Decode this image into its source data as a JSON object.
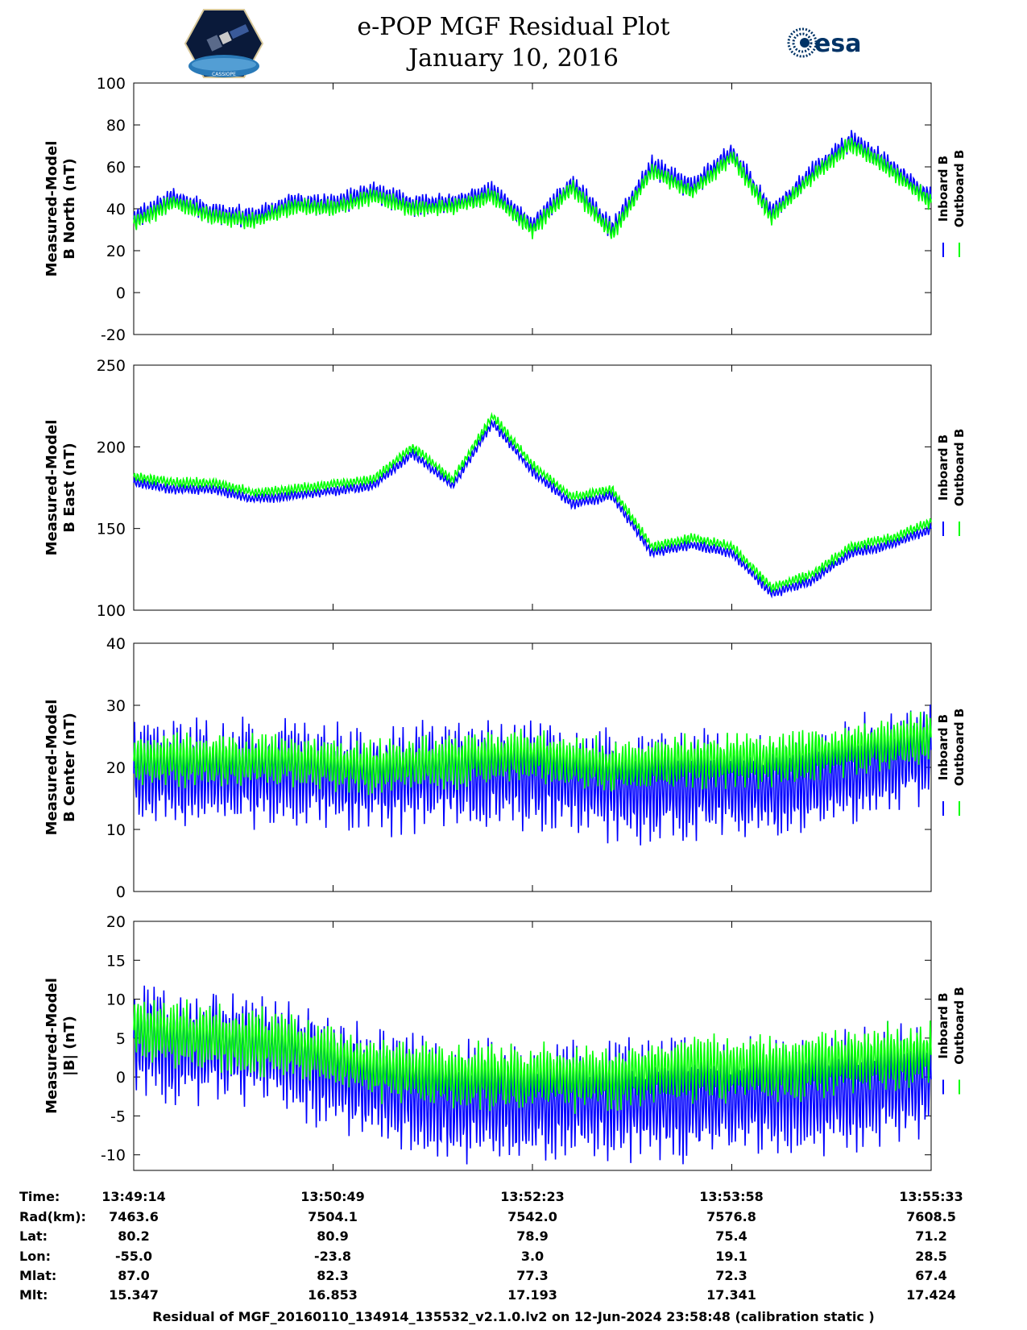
{
  "title": "e-POP MGF Residual Plot",
  "date": "January 10, 2016",
  "logo_left": {
    "icon": "cassiope-satellite-icon",
    "text": "CASSIOPE"
  },
  "logo_right": {
    "icon": "esa-logo-icon",
    "text": "esa"
  },
  "legend": {
    "inboard": "Inboard B",
    "outboard": "Outboard B",
    "inboard_color": "#0000ff",
    "outboard_color": "#00ff00"
  },
  "chart_data": [
    {
      "type": "line",
      "title": "",
      "ylabel_1": "Measured-Model",
      "ylabel_2": "B North (nT)",
      "ylim": [
        -20,
        100
      ],
      "yticks": [
        -20,
        0,
        20,
        40,
        60,
        80,
        100
      ],
      "ytick_labels": [
        "-20",
        "0",
        "20",
        "40",
        "60",
        "80",
        "100"
      ],
      "x": [
        0,
        0.05,
        0.1,
        0.15,
        0.2,
        0.25,
        0.3,
        0.35,
        0.4,
        0.45,
        0.5,
        0.55,
        0.6,
        0.65,
        0.7,
        0.75,
        0.8,
        0.85,
        0.9,
        0.95,
        1
      ],
      "series": [
        {
          "name": "Inboard B",
          "values": [
            35,
            45,
            38,
            36,
            43,
            42,
            48,
            42,
            43,
            48,
            32,
            52,
            30,
            60,
            50,
            67,
            38,
            57,
            73,
            60,
            45
          ],
          "noise": 5
        },
        {
          "name": "Outboard B",
          "values": [
            33,
            43,
            36,
            34,
            41,
            40,
            46,
            40,
            41,
            46,
            30,
            50,
            28,
            58,
            48,
            65,
            36,
            55,
            71,
            58,
            43
          ],
          "noise": 4
        }
      ]
    },
    {
      "type": "line",
      "title": "",
      "ylabel_1": "Measured-Model",
      "ylabel_2": "B East (nT)",
      "ylim": [
        100,
        250
      ],
      "yticks": [
        100,
        150,
        200,
        250
      ],
      "ytick_labels": [
        "100",
        "150",
        "200",
        "250"
      ],
      "x": [
        0,
        0.05,
        0.1,
        0.15,
        0.2,
        0.25,
        0.3,
        0.35,
        0.4,
        0.45,
        0.5,
        0.55,
        0.6,
        0.65,
        0.7,
        0.75,
        0.8,
        0.85,
        0.9,
        0.95,
        1
      ],
      "series": [
        {
          "name": "Inboard B",
          "values": [
            178,
            174,
            174,
            168,
            170,
            173,
            176,
            196,
            176,
            215,
            185,
            165,
            170,
            135,
            140,
            135,
            110,
            118,
            135,
            140,
            150
          ],
          "noise": 3
        },
        {
          "name": "Outboard B",
          "values": [
            182,
            178,
            178,
            172,
            174,
            177,
            180,
            200,
            180,
            219,
            189,
            169,
            174,
            139,
            144,
            139,
            114,
            122,
            139,
            144,
            154
          ],
          "noise": 3
        }
      ]
    },
    {
      "type": "line",
      "title": "",
      "ylabel_1": "Measured-Model",
      "ylabel_2": "B Center (nT)",
      "ylim": [
        0,
        40
      ],
      "yticks": [
        0,
        10,
        20,
        30,
        40
      ],
      "ytick_labels": [
        "0",
        "10",
        "20",
        "30",
        "40"
      ],
      "x": [
        0,
        0.1,
        0.2,
        0.3,
        0.4,
        0.5,
        0.6,
        0.7,
        0.8,
        0.9,
        1
      ],
      "series": [
        {
          "name": "Inboard B",
          "values": [
            19,
            19,
            19,
            18,
            19,
            19,
            17,
            17,
            17,
            19,
            23
          ],
          "noise": 8
        },
        {
          "name": "Outboard B",
          "values": [
            21,
            21,
            21,
            20,
            21,
            22,
            20,
            21,
            21,
            23,
            25
          ],
          "noise": 4
        }
      ]
    },
    {
      "type": "line",
      "title": "",
      "ylabel_1": "Measured-Model",
      "ylabel_2": "|B| (nT)",
      "ylim": [
        -12,
        20
      ],
      "yticks": [
        -10,
        -5,
        0,
        5,
        10,
        15,
        20
      ],
      "ytick_labels": [
        "-10",
        "-5",
        "0",
        "5",
        "10",
        "15",
        "20"
      ],
      "x": [
        0,
        0.1,
        0.2,
        0.3,
        0.4,
        0.5,
        0.6,
        0.7,
        0.8,
        0.9,
        1
      ],
      "series": [
        {
          "name": "Inboard B",
          "values": [
            5,
            4,
            3,
            -1,
            -3,
            -3,
            -3,
            -3,
            -2,
            -2,
            0
          ],
          "noise": 7
        },
        {
          "name": "Outboard B",
          "values": [
            6,
            5,
            4,
            1,
            0,
            0,
            0,
            1,
            1,
            2,
            3
          ],
          "noise": 4
        }
      ]
    }
  ],
  "table": {
    "row_labels": [
      "Time:",
      "Rad(km):",
      "Lat:",
      "Lon:",
      "Mlat:",
      "Mlt:"
    ],
    "columns": [
      [
        "13:49:14",
        "7463.6",
        "80.2",
        "-55.0",
        "87.0",
        "15.347"
      ],
      [
        "13:50:49",
        "7504.1",
        "80.9",
        "-23.8",
        "82.3",
        "16.853"
      ],
      [
        "13:52:23",
        "7542.0",
        "78.9",
        "3.0",
        "77.3",
        "17.193"
      ],
      [
        "13:53:58",
        "7576.8",
        "75.4",
        "19.1",
        "72.3",
        "17.341"
      ],
      [
        "13:55:33",
        "7608.5",
        "71.2",
        "28.5",
        "67.4",
        "17.424"
      ]
    ]
  },
  "footer": "Residual of MGF_20160110_134914_135532_v2.1.0.lv2 on 12-Jun-2024 23:58:48 (calibration static )"
}
